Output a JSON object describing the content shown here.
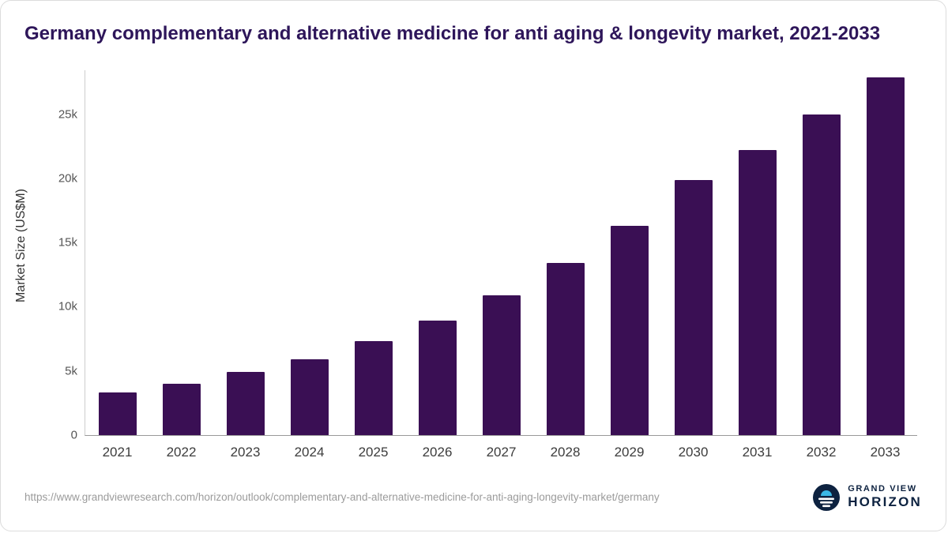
{
  "title": "Germany complementary and alternative medicine for anti aging & longevity market, 2021-2033",
  "chart_data": {
    "type": "bar",
    "categories": [
      "2021",
      "2022",
      "2023",
      "2024",
      "2025",
      "2026",
      "2027",
      "2028",
      "2029",
      "2030",
      "2031",
      "2032",
      "2033"
    ],
    "values": [
      3300,
      4000,
      4900,
      5900,
      7300,
      8900,
      10900,
      13400,
      16300,
      19900,
      22200,
      25000,
      27900
    ],
    "title": "Germany complementary and alternative medicine for anti aging & longevity market, 2021-2033",
    "xlabel": "",
    "ylabel": "Market Size (US$M)",
    "ylim": [
      0,
      28400
    ],
    "y_ticks": [
      {
        "label": "0",
        "value": 0
      },
      {
        "label": "5k",
        "value": 5000
      },
      {
        "label": "10k",
        "value": 10000
      },
      {
        "label": "15k",
        "value": 15000
      },
      {
        "label": "20k",
        "value": 20000
      },
      {
        "label": "25k",
        "value": 25000
      }
    ],
    "grid": false,
    "legend": false,
    "bar_color": "#3a0f54"
  },
  "footer": {
    "source_url": "https://www.grandviewresearch.com/horizon/outlook/complementary-and-alternative-medicine-for-anti-aging-longevity-market/germany",
    "logo": {
      "line1": "GRAND VIEW",
      "line2": "HORIZON"
    }
  },
  "colors": {
    "bar": "#3a0f54",
    "title": "#2e165a",
    "axis_text": "#555555",
    "footer_text": "#9b9b9b",
    "logo_navy": "#0d2240",
    "logo_blue": "#3ab8e6"
  }
}
